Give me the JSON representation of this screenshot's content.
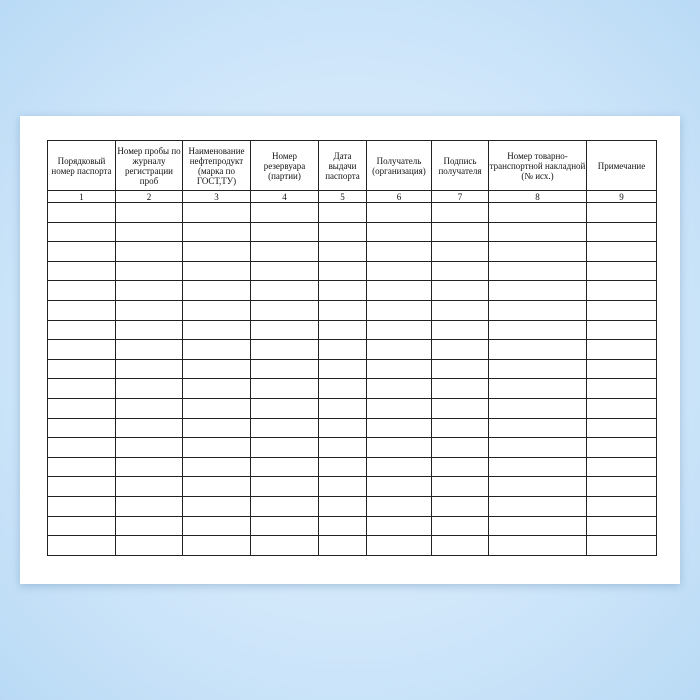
{
  "table": {
    "headers": [
      "Порядковый номер паспорта",
      "Номер пробы по журналу регистрации проб",
      "Наименование нефтепродукт (марка по ГОСТ,ТУ)",
      "Номер резервуара (партии)",
      "Дата выдачи паспорта",
      "Получатель (организация)",
      "Подпись получателя",
      "Номер товарно-транспортной накладной (№ исх.)",
      "Примечание"
    ],
    "column_numbers": [
      "1",
      "2",
      "3",
      "4",
      "5",
      "6",
      "7",
      "8",
      "9"
    ]
  }
}
